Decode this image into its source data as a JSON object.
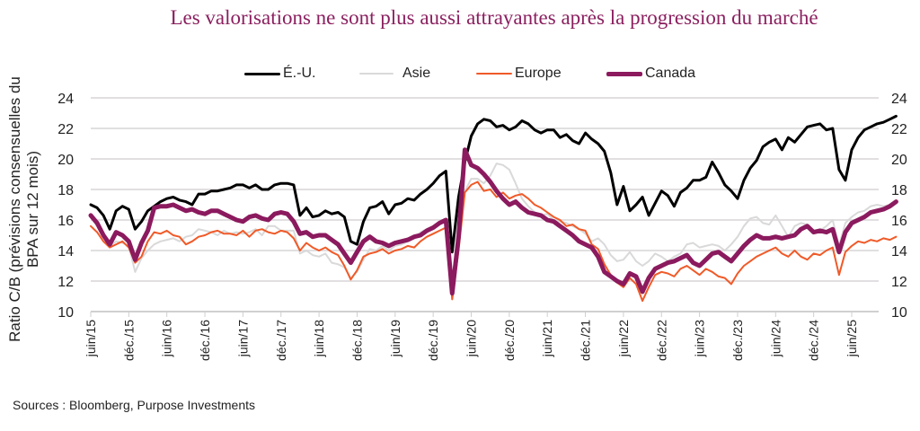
{
  "chart_data": {
    "type": "line",
    "title": "Les valorisations ne sont plus aussi attrayantes après la progression du marché",
    "ylabel": "Ratio C/B (prévisions consensuelles du BPA sur 12 mois)",
    "xlabel": "",
    "ylim": [
      10,
      24
    ],
    "yticks": [
      10,
      12,
      14,
      16,
      18,
      20,
      22,
      24
    ],
    "ytick_labels": [
      "10",
      "12",
      "14",
      "16",
      "18",
      "20",
      "22",
      "24"
    ],
    "secondary_y_axis": true,
    "grid": true,
    "legend_position": "top",
    "x_start": "2015-06",
    "x_step": "month",
    "xtick_labels": [
      "juin/15",
      "déc./15",
      "juin/16",
      "déc./16",
      "juin/17",
      "déc./17",
      "juin/18",
      "déc./18",
      "juin/19",
      "déc./19",
      "juin/20",
      "déc./20",
      "juin/21",
      "déc./21",
      "juin/22",
      "déc./22",
      "juin/23",
      "déc./23",
      "juin/24",
      "déc./24",
      "juin/25"
    ],
    "series": [
      {
        "name": "É.-U.",
        "color": "#000000",
        "values": [
          17.0,
          16.8,
          16.3,
          15.4,
          16.6,
          16.9,
          16.7,
          15.4,
          15.9,
          16.6,
          16.9,
          17.2,
          17.4,
          17.5,
          17.3,
          17.2,
          17.0,
          17.7,
          17.7,
          17.9,
          17.9,
          18.0,
          18.1,
          18.3,
          18.3,
          18.1,
          18.3,
          18.0,
          18.0,
          18.3,
          18.4,
          18.4,
          18.3,
          16.3,
          16.8,
          16.2,
          16.3,
          16.6,
          16.4,
          16.5,
          16.2,
          14.6,
          14.4,
          15.9,
          16.8,
          16.9,
          17.2,
          16.4,
          17.0,
          17.1,
          17.4,
          17.3,
          17.7,
          18.0,
          18.4,
          18.9,
          19.2,
          13.9,
          17.5,
          19.8,
          21.5,
          22.3,
          22.6,
          22.5,
          22.1,
          22.2,
          21.9,
          22.1,
          22.5,
          22.3,
          21.9,
          21.7,
          21.9,
          21.9,
          21.4,
          21.6,
          21.2,
          21.0,
          21.7,
          21.3,
          21.0,
          20.5,
          19.1,
          17.0,
          18.2,
          16.6,
          17.0,
          17.5,
          16.3,
          17.1,
          17.9,
          17.6,
          16.9,
          17.8,
          18.1,
          18.6,
          18.6,
          18.8,
          19.8,
          19.1,
          18.3,
          17.9,
          17.4,
          18.6,
          19.4,
          19.9,
          20.8,
          21.1,
          21.3,
          20.6,
          21.4,
          21.1,
          21.6,
          22.1,
          22.2,
          22.3,
          21.9,
          22.0,
          19.3,
          18.6,
          20.6,
          21.4,
          21.9,
          22.1,
          22.3,
          22.4,
          22.6,
          22.8
        ]
      },
      {
        "name": "Asie",
        "color": "#d9d9d9",
        "values": [
          16.2,
          15.6,
          14.9,
          14.3,
          14.6,
          14.5,
          14.3,
          12.6,
          13.5,
          14.0,
          14.4,
          14.6,
          14.7,
          14.8,
          14.6,
          14.9,
          15.0,
          15.4,
          15.3,
          15.2,
          15.0,
          15.3,
          15.1,
          15.2,
          15.1,
          15.2,
          15.4,
          15.0,
          15.6,
          15.6,
          15.3,
          15.3,
          15.3,
          13.8,
          14.0,
          13.7,
          13.6,
          13.8,
          13.2,
          13.1,
          12.9,
          12.2,
          12.6,
          13.4,
          14.1,
          14.0,
          14.3,
          14.0,
          14.3,
          14.4,
          14.6,
          14.8,
          15.2,
          15.4,
          15.6,
          15.8,
          15.9,
          11.5,
          14.5,
          17.9,
          18.7,
          18.7,
          18.4,
          18.9,
          19.7,
          19.6,
          19.3,
          18.4,
          17.4,
          16.9,
          16.5,
          16.3,
          16.4,
          16.0,
          15.9,
          15.8,
          15.6,
          15.4,
          15.1,
          14.6,
          14.8,
          14.4,
          13.7,
          13.3,
          13.4,
          13.9,
          13.3,
          13.0,
          13.3,
          13.8,
          13.6,
          13.3,
          13.6,
          13.8,
          14.4,
          14.5,
          14.2,
          14.3,
          14.4,
          14.3,
          14.0,
          14.4,
          14.9,
          15.6,
          16.1,
          16.2,
          15.8,
          15.7,
          16.3,
          15.6,
          14.9,
          15.6,
          15.8,
          15.7,
          15.3,
          15.3,
          15.6,
          16.0,
          14.3,
          15.8,
          16.2,
          16.5,
          16.6,
          16.9,
          17.0,
          16.9,
          17.0,
          17.2
        ]
      },
      {
        "name": "Europe",
        "color": "#f05a28",
        "values": [
          15.6,
          15.2,
          14.6,
          14.2,
          14.4,
          14.6,
          14.2,
          13.2,
          13.6,
          14.6,
          15.2,
          15.1,
          15.3,
          15.0,
          14.9,
          14.4,
          14.6,
          14.9,
          15.0,
          15.2,
          15.3,
          15.1,
          15.1,
          15.0,
          15.3,
          14.9,
          15.3,
          15.4,
          15.2,
          15.1,
          15.3,
          15.2,
          14.8,
          14.0,
          14.5,
          14.2,
          14.0,
          14.2,
          13.9,
          13.7,
          13.0,
          12.1,
          12.7,
          13.6,
          13.8,
          13.9,
          14.1,
          13.8,
          14.0,
          14.1,
          14.3,
          14.2,
          14.6,
          14.9,
          15.1,
          15.3,
          15.5,
          10.8,
          14.0,
          17.8,
          18.3,
          18.5,
          17.9,
          18.0,
          17.5,
          17.8,
          17.4,
          17.6,
          17.7,
          17.4,
          17.0,
          16.8,
          16.5,
          16.2,
          16.0,
          15.6,
          15.7,
          15.4,
          15.3,
          14.4,
          14.1,
          13.1,
          12.4,
          11.9,
          11.6,
          12.2,
          11.8,
          10.7,
          11.6,
          12.4,
          12.6,
          12.5,
          12.3,
          12.8,
          13.0,
          12.7,
          12.4,
          12.8,
          12.6,
          12.3,
          12.2,
          11.8,
          12.5,
          13.0,
          13.3,
          13.6,
          13.8,
          14.0,
          14.2,
          13.8,
          13.6,
          14.0,
          13.6,
          13.4,
          13.8,
          13.7,
          14.0,
          14.2,
          12.4,
          13.9,
          14.3,
          14.6,
          14.5,
          14.7,
          14.6,
          14.8,
          14.7,
          14.9
        ]
      },
      {
        "name": "Canada",
        "color": "#8b1a5e",
        "values": [
          16.3,
          15.8,
          15.0,
          14.4,
          15.2,
          15.0,
          14.6,
          13.4,
          14.5,
          15.3,
          16.8,
          16.9,
          16.9,
          17.0,
          16.8,
          16.6,
          16.7,
          16.5,
          16.4,
          16.6,
          16.6,
          16.4,
          16.2,
          16.0,
          15.9,
          16.2,
          16.3,
          16.1,
          16.0,
          16.4,
          16.5,
          16.4,
          15.9,
          15.1,
          15.2,
          14.9,
          15.0,
          15.0,
          14.7,
          14.4,
          13.8,
          13.2,
          13.9,
          14.6,
          14.9,
          14.6,
          14.5,
          14.3,
          14.5,
          14.6,
          14.7,
          14.9,
          15.0,
          15.3,
          15.5,
          15.8,
          16.0,
          11.2,
          14.9,
          20.6,
          19.6,
          19.4,
          19.0,
          18.5,
          17.9,
          17.4,
          17.0,
          17.2,
          16.8,
          16.5,
          16.4,
          16.3,
          16.0,
          15.9,
          15.6,
          15.3,
          15.0,
          14.6,
          14.4,
          14.2,
          13.6,
          12.6,
          12.3,
          12.0,
          11.8,
          12.5,
          12.3,
          11.3,
          12.2,
          12.8,
          13.0,
          13.2,
          13.3,
          13.5,
          13.7,
          13.2,
          13.0,
          13.4,
          13.8,
          13.9,
          13.6,
          13.3,
          13.8,
          14.3,
          14.7,
          15.0,
          14.8,
          14.8,
          14.9,
          14.8,
          14.9,
          15.0,
          15.4,
          15.6,
          15.2,
          15.3,
          15.2,
          15.4,
          13.9,
          15.2,
          15.8,
          16.0,
          16.2,
          16.5,
          16.6,
          16.7,
          16.9,
          17.2
        ]
      }
    ],
    "source": "Sources : Bloomberg, Purpose Investments"
  },
  "legend": [
    {
      "label": "É.-U.",
      "color": "#000000"
    },
    {
      "label": "Asie",
      "color": "#d9d9d9"
    },
    {
      "label": "Europe",
      "color": "#f05a28"
    },
    {
      "label": "Canada",
      "color": "#8b1a5e"
    }
  ]
}
